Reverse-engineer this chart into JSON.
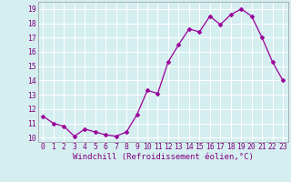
{
  "x": [
    0,
    1,
    2,
    3,
    4,
    5,
    6,
    7,
    8,
    9,
    10,
    11,
    12,
    13,
    14,
    15,
    16,
    17,
    18,
    19,
    20,
    21,
    22,
    23
  ],
  "y": [
    11.5,
    11.0,
    10.8,
    10.1,
    10.6,
    10.4,
    10.2,
    10.1,
    10.4,
    11.6,
    13.3,
    13.1,
    15.3,
    16.5,
    17.6,
    17.4,
    18.5,
    17.9,
    18.6,
    19.0,
    18.5,
    17.0,
    15.3,
    14.0
  ],
  "line_color": "#990099",
  "marker": "D",
  "markersize": 2.5,
  "linewidth": 0.9,
  "xlabel": "Windchill (Refroidissement éolien,°C)",
  "xlabel_fontsize": 6.5,
  "bg_color": "#d5eef0",
  "grid_color": "#ffffff",
  "yticks": [
    10,
    11,
    12,
    13,
    14,
    15,
    16,
    17,
    18,
    19
  ],
  "xticks": [
    0,
    1,
    2,
    3,
    4,
    5,
    6,
    7,
    8,
    9,
    10,
    11,
    12,
    13,
    14,
    15,
    16,
    17,
    18,
    19,
    20,
    21,
    22,
    23
  ],
  "ylim": [
    9.7,
    19.5
  ],
  "xlim": [
    -0.5,
    23.5
  ],
  "tick_fontsize": 5.8,
  "label_color": "#800080"
}
